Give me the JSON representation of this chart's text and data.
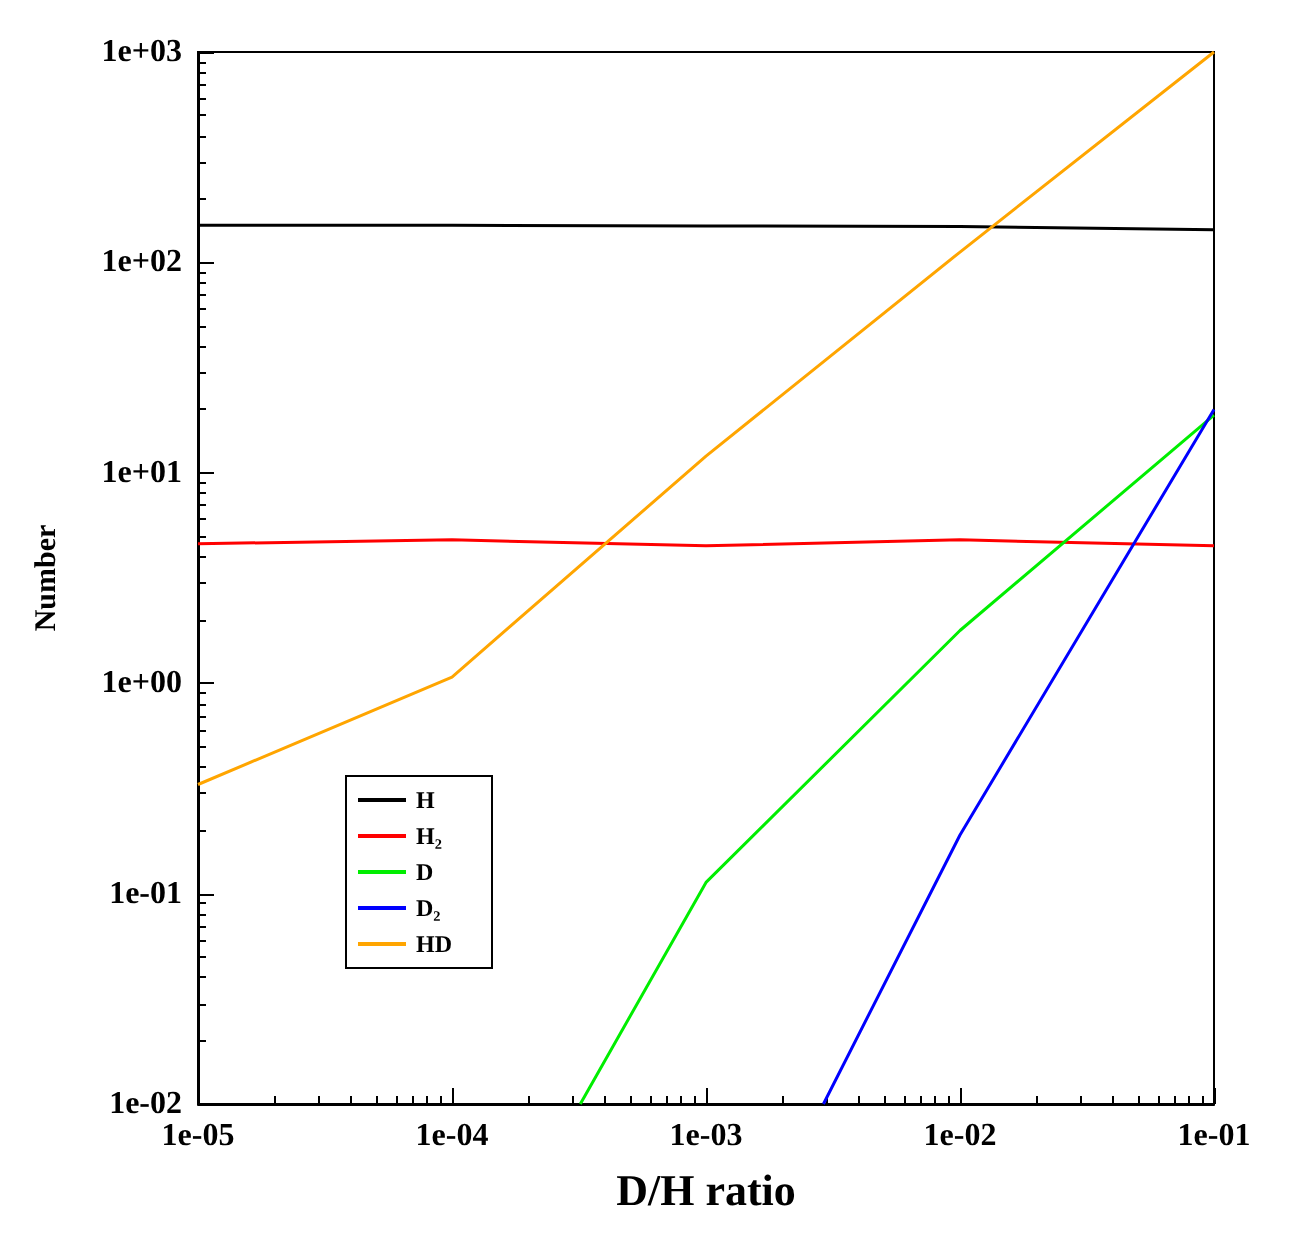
{
  "chart_data": {
    "type": "line",
    "xlabel": "D/H ratio",
    "ylabel": "Number",
    "log": "xy",
    "x": [
      1e-05,
      0.0001,
      0.001,
      0.01,
      0.1
    ],
    "xlim": [
      1e-05,
      0.1
    ],
    "ylim": [
      0.01,
      1000
    ],
    "xticks": [
      {
        "value": 1e-05,
        "label": "1e-05"
      },
      {
        "value": 0.0001,
        "label": "1e-04"
      },
      {
        "value": 0.001,
        "label": "1e-03"
      },
      {
        "value": 0.01,
        "label": "1e-02"
      },
      {
        "value": 0.1,
        "label": "1e-01"
      }
    ],
    "yticks": [
      {
        "value": 0.01,
        "label": "1e-02"
      },
      {
        "value": 0.1,
        "label": "1e-01"
      },
      {
        "value": 1,
        "label": "1e+00"
      },
      {
        "value": 10,
        "label": "1e+01"
      },
      {
        "value": 100,
        "label": "1e+02"
      },
      {
        "value": 1000,
        "label": "1e+03"
      }
    ],
    "grid": false,
    "legend": "bottom left",
    "marker": "none",
    "line_style": "solid",
    "series": [
      {
        "name": "H",
        "color": "#000000",
        "values": [
          150,
          150,
          149,
          148,
          143
        ]
      },
      {
        "name": "H₂",
        "color": "#ff0000",
        "values": [
          4.6,
          4.8,
          4.5,
          4.8,
          4.5
        ]
      },
      {
        "name": "D",
        "color": "#00ee00",
        "x": [
          0.00032,
          0.001,
          0.01,
          0.1
        ],
        "values": [
          0.01,
          0.113,
          1.78,
          18.8
        ]
      },
      {
        "name": "D₂",
        "color": "#0000ff",
        "x": [
          0.0029,
          0.01,
          0.1
        ],
        "values": [
          0.01,
          0.19,
          20
        ]
      },
      {
        "name": "HD",
        "color": "#ffa500",
        "values": [
          0.33,
          1.07,
          12,
          112,
          1000
        ]
      }
    ]
  }
}
